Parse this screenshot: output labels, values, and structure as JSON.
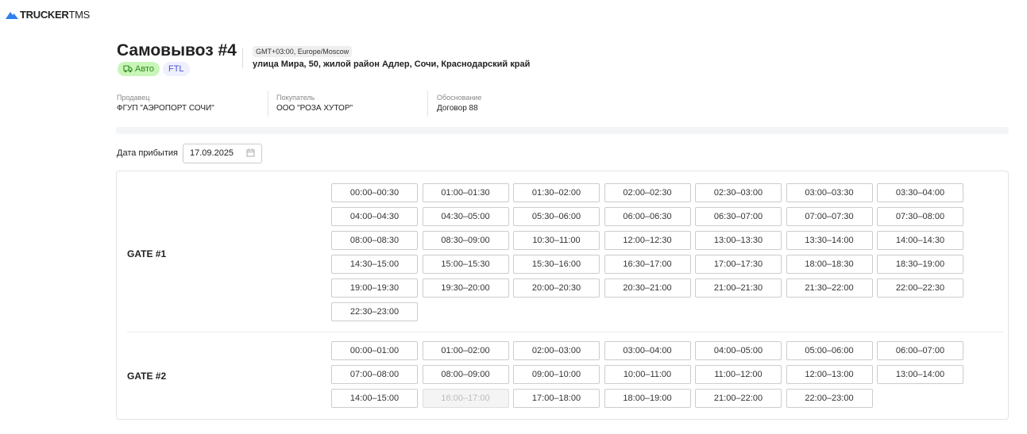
{
  "brand": {
    "bold": "TRUCKER",
    "rest": "TMS"
  },
  "header": {
    "title": "Самовывоз #4",
    "badges": [
      "Авто",
      "FTL"
    ],
    "timezone": "GMT+03:00, Europe/Moscow",
    "address": "улица Мира, 50, жилой район Адлер, Сочи, Краснодарский край"
  },
  "meta": [
    {
      "label": "Продавец",
      "value": "ФГУП \"АЭРОПОРТ СОЧИ\""
    },
    {
      "label": "Покупатель",
      "value": "ООО \"РОЗА ХУТОР\""
    },
    {
      "label": "Обоснование",
      "value": "Договор 88"
    }
  ],
  "arrival": {
    "label": "Дата прибытия",
    "value": "17.09.2025"
  },
  "gates": [
    {
      "name": "GATE #1",
      "slots": [
        {
          "t": "00:00–00:30"
        },
        {
          "t": "01:00–01:30"
        },
        {
          "t": "01:30–02:00"
        },
        {
          "t": "02:00–02:30"
        },
        {
          "t": "02:30–03:00"
        },
        {
          "t": "03:00–03:30"
        },
        {
          "t": "03:30–04:00"
        },
        {
          "t": "04:00–04:30"
        },
        {
          "t": "04:30–05:00"
        },
        {
          "t": "05:30–06:00"
        },
        {
          "t": "06:00–06:30"
        },
        {
          "t": "06:30–07:00"
        },
        {
          "t": "07:00–07:30"
        },
        {
          "t": "07:30–08:00"
        },
        {
          "t": "08:00–08:30"
        },
        {
          "t": "08:30–09:00"
        },
        {
          "t": "10:30–11:00"
        },
        {
          "t": "12:00–12:30"
        },
        {
          "t": "13:00–13:30"
        },
        {
          "t": "13:30–14:00"
        },
        {
          "t": "14:00–14:30"
        },
        {
          "t": "14:30–15:00"
        },
        {
          "t": "15:00–15:30"
        },
        {
          "t": "15:30–16:00"
        },
        {
          "t": "16:30–17:00"
        },
        {
          "t": "17:00–17:30"
        },
        {
          "t": "18:00–18:30"
        },
        {
          "t": "18:30–19:00"
        },
        {
          "t": "19:00–19:30"
        },
        {
          "t": "19:30–20:00"
        },
        {
          "t": "20:00–20:30"
        },
        {
          "t": "20:30–21:00"
        },
        {
          "t": "21:00–21:30"
        },
        {
          "t": "21:30–22:00"
        },
        {
          "t": "22:00–22:30"
        },
        {
          "t": "22:30–23:00"
        }
      ]
    },
    {
      "name": "GATE #2",
      "slots": [
        {
          "t": "00:00–01:00"
        },
        {
          "t": "01:00–02:00"
        },
        {
          "t": "02:00–03:00"
        },
        {
          "t": "03:00–04:00"
        },
        {
          "t": "04:00–05:00"
        },
        {
          "t": "05:00–06:00"
        },
        {
          "t": "06:00–07:00"
        },
        {
          "t": "07:00–08:00"
        },
        {
          "t": "08:00–09:00"
        },
        {
          "t": "09:00–10:00"
        },
        {
          "t": "10:00–11:00"
        },
        {
          "t": "11:00–12:00"
        },
        {
          "t": "12:00–13:00"
        },
        {
          "t": "13:00–14:00"
        },
        {
          "t": "14:00–15:00"
        },
        {
          "t": "16:00–17:00",
          "disabled": true
        },
        {
          "t": "17:00–18:00"
        },
        {
          "t": "18:00–19:00"
        },
        {
          "t": "21:00–22:00"
        },
        {
          "t": "22:00–23:00"
        }
      ]
    }
  ]
}
